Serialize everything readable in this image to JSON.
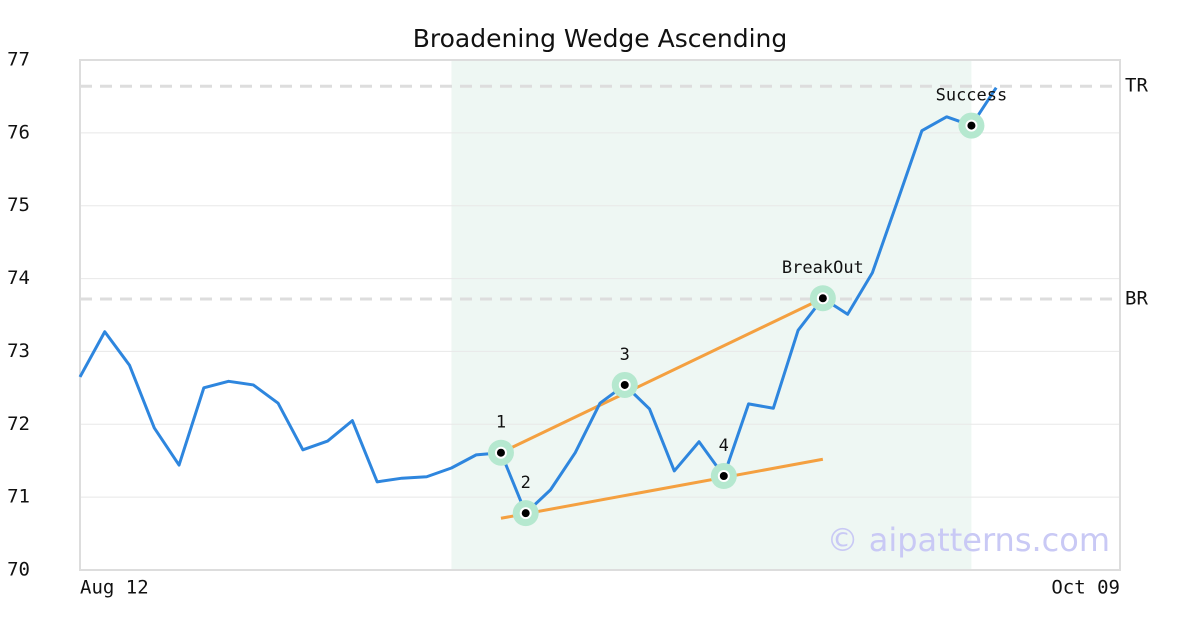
{
  "chart_data": {
    "type": "line",
    "title": "Broadening Wedge Ascending",
    "categories": [
      "Aug 12",
      null,
      null,
      null,
      null,
      null,
      null,
      null,
      null,
      null,
      null,
      null,
      null,
      null,
      null,
      null,
      null,
      null,
      null,
      null,
      null,
      null,
      null,
      null,
      null,
      null,
      null,
      null,
      null,
      null,
      null,
      null,
      null,
      null,
      null,
      null,
      null,
      null,
      null,
      null,
      null,
      null,
      "Oct 09"
    ],
    "xlim": [
      0,
      42
    ],
    "series": [
      {
        "color": "#2e86de",
        "values": [
          72.65,
          73.27,
          72.81,
          71.95,
          71.44,
          72.5,
          72.59,
          72.54,
          72.29,
          71.65,
          71.77,
          72.05,
          71.21,
          71.26,
          71.28,
          71.4,
          71.58,
          71.61,
          70.78,
          71.1,
          71.61,
          72.29,
          72.54,
          72.21,
          71.36,
          71.76,
          71.29,
          72.28,
          72.22,
          73.29,
          73.73,
          73.51,
          74.08,
          75.05,
          76.03,
          76.22,
          76.1,
          76.62,
          null,
          null,
          null,
          null,
          null
        ]
      }
    ],
    "ylim": [
      70,
      77
    ],
    "yticks": [
      70,
      71,
      72,
      73,
      74,
      75,
      76,
      77
    ],
    "grid": true,
    "xspan": [
      15,
      36
    ],
    "xspan_color": "#eef7f3",
    "hlines": [
      {
        "label": "TR",
        "value": 76.64
      },
      {
        "label": "BR",
        "value": 73.72
      }
    ],
    "trendlines": [
      {
        "x": [
          17,
          30
        ],
        "values": [
          71.61,
          73.73
        ],
        "color": "#f4a040"
      },
      {
        "x": [
          17,
          30
        ],
        "values": [
          70.71,
          71.52
        ],
        "color": "#f4a040"
      }
    ],
    "points": [
      {
        "label": "1",
        "x": 17
      },
      {
        "label": "2",
        "x": 18
      },
      {
        "label": "3",
        "x": 22
      },
      {
        "label": "4",
        "x": 26
      },
      {
        "label": "BreakOut",
        "x": 30
      },
      {
        "label": "Success",
        "x": 36
      }
    ],
    "watermark": "© aipatterns.com"
  }
}
